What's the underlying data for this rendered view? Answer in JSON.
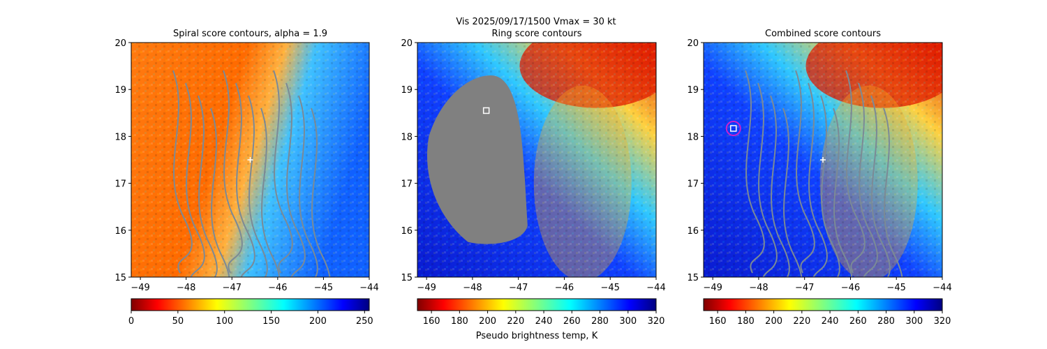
{
  "suptitle_line1": "Vis  2025/09/17/1500    Vmax = 30 kt",
  "colors": {
    "gray_mask": "#808080",
    "contour": "#7b8a96",
    "marker": "#ffffff",
    "circle": "#cc22cc"
  },
  "chart_data": [
    {
      "type": "heatmap",
      "title": "Spiral score contours, alpha =  1.9",
      "colormap": "jet_r",
      "xlim": [
        -49.2,
        -44
      ],
      "ylim": [
        15,
        20
      ],
      "xticks": [
        -49,
        -48,
        -47,
        -46,
        -45,
        -44
      ],
      "yticks": [
        15,
        16,
        17,
        18,
        19,
        20
      ],
      "colorbar": {
        "range": [
          0,
          255
        ],
        "ticks": [
          0,
          50,
          100,
          150,
          200,
          250
        ],
        "label": ""
      },
      "center_marker": {
        "x": -46.6,
        "y": 17.5
      },
      "contour_lines": 12
    },
    {
      "type": "heatmap",
      "title": "Ring score contours",
      "colormap": "jet_r",
      "xlim": [
        -49.2,
        -44
      ],
      "ylim": [
        15,
        20
      ],
      "xticks": [
        -49,
        -48,
        -47,
        -46,
        -45,
        -44
      ],
      "yticks": [
        15,
        16,
        17,
        18,
        19,
        20
      ],
      "colorbar": {
        "range": [
          150,
          320
        ],
        "ticks": [
          160,
          180,
          200,
          220,
          240,
          260,
          280,
          300,
          320
        ],
        "label": "Pseudo brightness temp, K"
      },
      "masked_region": "gray",
      "square_marker": {
        "x": -47.7,
        "y": 18.55
      }
    },
    {
      "type": "heatmap",
      "title": "Combined score contours",
      "colormap": "jet_r",
      "xlim": [
        -49.2,
        -44
      ],
      "ylim": [
        15,
        20
      ],
      "xticks": [
        -49,
        -48,
        -47,
        -46,
        -45,
        -44
      ],
      "yticks": [
        15,
        16,
        17,
        18,
        19,
        20
      ],
      "colorbar": {
        "range": [
          150,
          320
        ],
        "ticks": [
          160,
          180,
          200,
          220,
          240,
          260,
          280,
          300,
          320
        ],
        "label": ""
      },
      "center_marker": {
        "x": -46.6,
        "y": 17.5
      },
      "square_marker": {
        "x": -48.55,
        "y": 18.17
      },
      "contour_lines": 12
    }
  ]
}
